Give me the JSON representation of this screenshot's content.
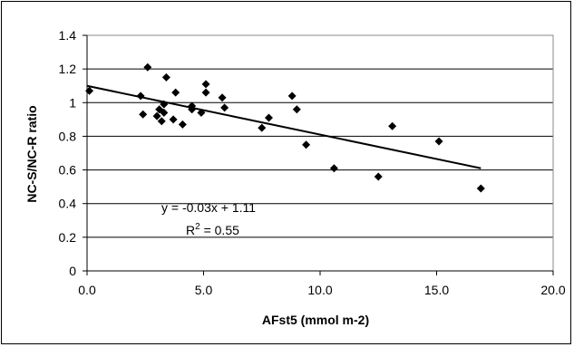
{
  "chart_data": {
    "type": "scatter",
    "title": "",
    "xlabel": "AFst5 (mmol m-2)",
    "ylabel": "NC-S/NC-R ratio",
    "xlim": [
      0,
      20
    ],
    "ylim": [
      0,
      1.4
    ],
    "x_ticks": [
      "0.0",
      "5.0",
      "10.0",
      "15.0",
      "20.0"
    ],
    "y_ticks": [
      "0",
      "0.2",
      "0.4",
      "0.6",
      "0.8",
      "1",
      "1.2",
      "1.4"
    ],
    "grid": "horizontal",
    "legend": "none",
    "marker": "diamond",
    "marker_color": "#000000",
    "points": [
      {
        "x": 0.1,
        "y": 1.07
      },
      {
        "x": 2.3,
        "y": 1.04
      },
      {
        "x": 2.4,
        "y": 0.93
      },
      {
        "x": 2.6,
        "y": 1.21
      },
      {
        "x": 3.0,
        "y": 0.92
      },
      {
        "x": 3.1,
        "y": 0.96
      },
      {
        "x": 3.2,
        "y": 0.89
      },
      {
        "x": 3.3,
        "y": 0.99
      },
      {
        "x": 3.3,
        "y": 0.94
      },
      {
        "x": 3.4,
        "y": 1.15
      },
      {
        "x": 3.7,
        "y": 0.9
      },
      {
        "x": 3.8,
        "y": 1.06
      },
      {
        "x": 4.1,
        "y": 0.87
      },
      {
        "x": 4.5,
        "y": 0.98
      },
      {
        "x": 4.5,
        "y": 0.96
      },
      {
        "x": 4.9,
        "y": 0.94
      },
      {
        "x": 5.1,
        "y": 1.11
      },
      {
        "x": 5.1,
        "y": 1.06
      },
      {
        "x": 5.8,
        "y": 1.03
      },
      {
        "x": 5.9,
        "y": 0.97
      },
      {
        "x": 7.5,
        "y": 0.85
      },
      {
        "x": 7.8,
        "y": 0.91
      },
      {
        "x": 8.8,
        "y": 1.04
      },
      {
        "x": 9.0,
        "y": 0.96
      },
      {
        "x": 9.4,
        "y": 0.75
      },
      {
        "x": 10.6,
        "y": 0.61
      },
      {
        "x": 12.5,
        "y": 0.56
      },
      {
        "x": 13.1,
        "y": 0.86
      },
      {
        "x": 15.1,
        "y": 0.77
      },
      {
        "x": 16.9,
        "y": 0.49
      }
    ],
    "trendline": {
      "x": [
        0,
        16.9
      ],
      "y": [
        1.1,
        0.61
      ]
    },
    "annotations": {
      "equation": "y = -0.03x + 1.11",
      "r2_prefix": "R",
      "r2_sup": "2",
      "r2_suffix": " = 0.55"
    }
  }
}
